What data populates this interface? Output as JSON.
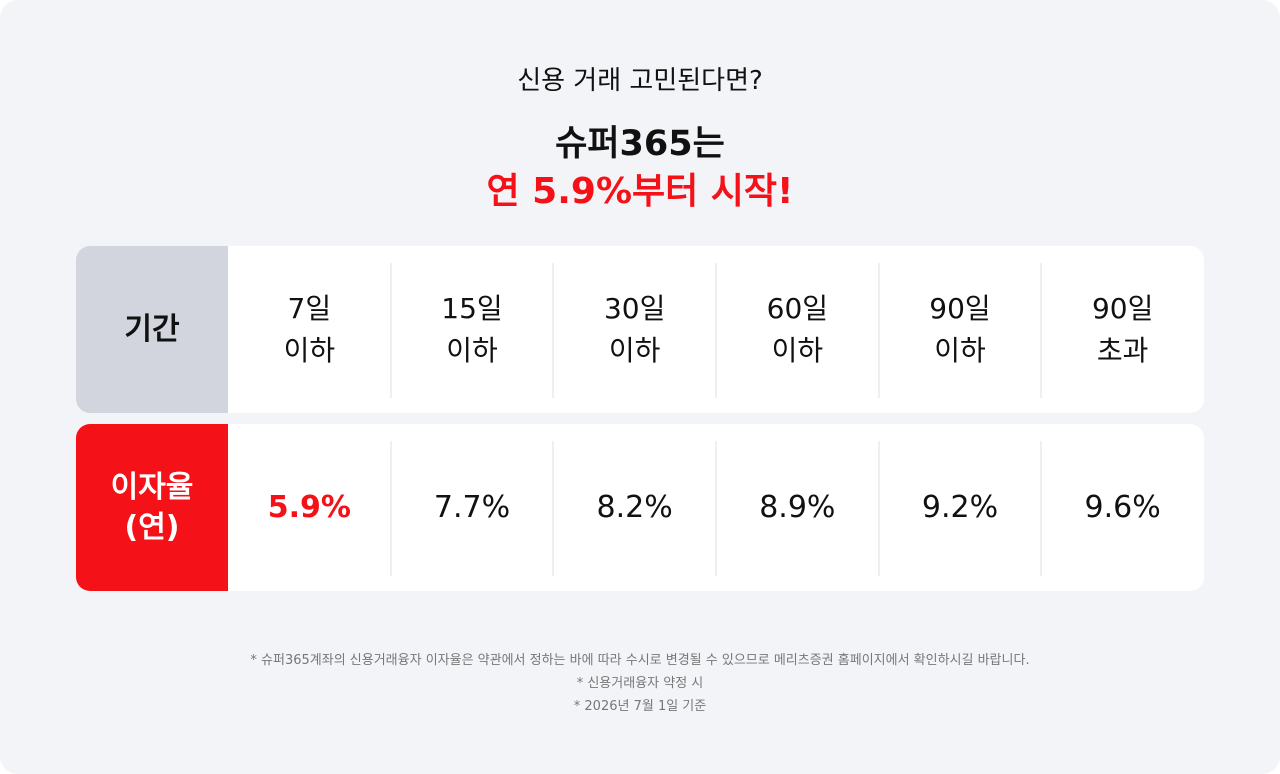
{
  "header": {
    "question": "신용 거래 고민된다면?",
    "headline": "슈퍼365는",
    "highlight": "연 5.9%부터 시작!"
  },
  "table": {
    "period_label": "기간",
    "rate_label": [
      "이자율",
      "(연)"
    ],
    "columns": [
      {
        "period": [
          "7일",
          "이하"
        ],
        "rate": "5.9%"
      },
      {
        "period": [
          "15일",
          "이하"
        ],
        "rate": "7.7%"
      },
      {
        "period": [
          "30일",
          "이하"
        ],
        "rate": "8.2%"
      },
      {
        "period": [
          "60일",
          "이하"
        ],
        "rate": "8.9%"
      },
      {
        "period": [
          "90일",
          "이하"
        ],
        "rate": "9.2%"
      },
      {
        "period": [
          "90일",
          "초과"
        ],
        "rate": "9.6%"
      }
    ]
  },
  "footnotes": [
    "* 슈퍼365계좌의 신용거래융자 이자율은 약관에서 정하는 바에 따라 수시로 변경될 수 있으므로 메리츠증권 홈페이지에서 확인하시길 바랍니다.",
    "* 신용거래융자 약정 시",
    "* 2026년 7월 1일 기준"
  ]
}
